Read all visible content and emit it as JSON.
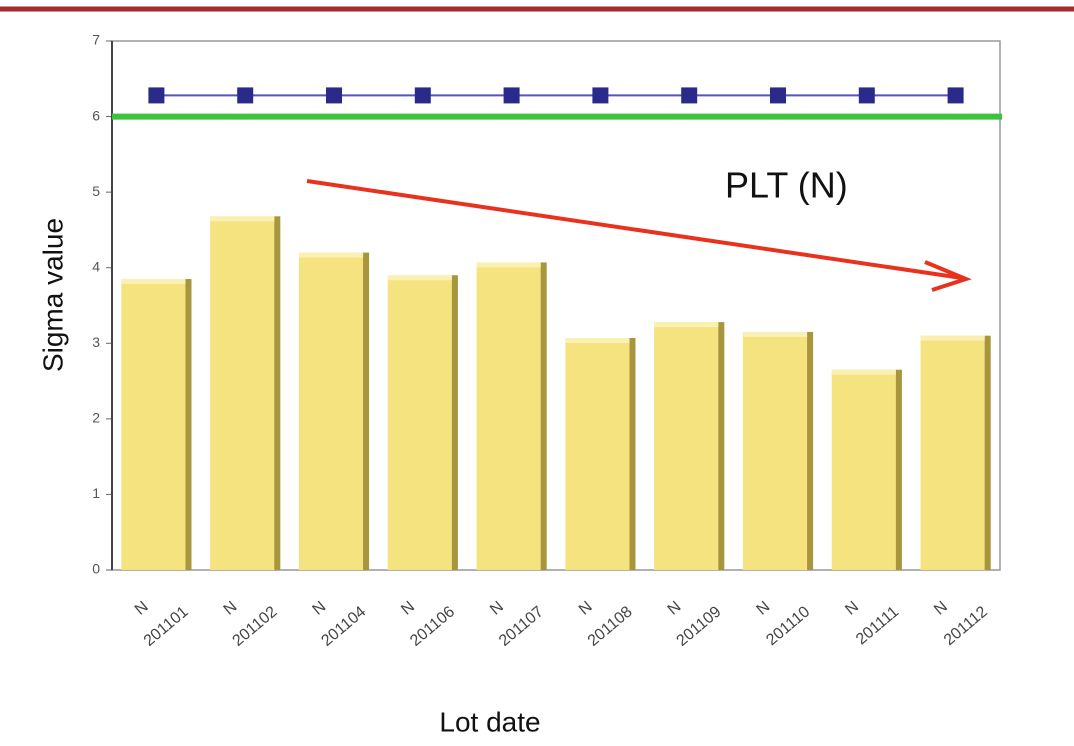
{
  "chart_data": {
    "type": "bar",
    "y_label": "Sigma value",
    "x_label": "Lot date",
    "annotation": "PLT (N)",
    "categories": [
      [
        "N",
        "201101"
      ],
      [
        "N",
        "201102"
      ],
      [
        "N",
        "201104"
      ],
      [
        "N",
        "201106"
      ],
      [
        "N",
        "201107"
      ],
      [
        "N",
        "201108"
      ],
      [
        "N",
        "201109"
      ],
      [
        "N",
        "201110"
      ],
      [
        "N",
        "201111"
      ],
      [
        "N",
        "201112"
      ]
    ],
    "series": [
      {
        "type": "bar",
        "color": "#f5e37f",
        "values": [
          3.85,
          4.68,
          4.2,
          3.9,
          4.07,
          3.07,
          3.28,
          3.15,
          2.65,
          3.1
        ]
      },
      {
        "type": "line",
        "color": "#2a2a8a",
        "values": [
          6.28,
          6.28,
          6.28,
          6.28,
          6.28,
          6.28,
          6.28,
          6.28,
          6.28,
          6.28
        ]
      }
    ],
    "reference_line": {
      "value": 6,
      "color": "#3cc23c"
    },
    "ylim": [
      0,
      7
    ],
    "yticks": [
      0,
      1,
      2,
      3,
      4,
      5,
      6,
      7
    ]
  }
}
